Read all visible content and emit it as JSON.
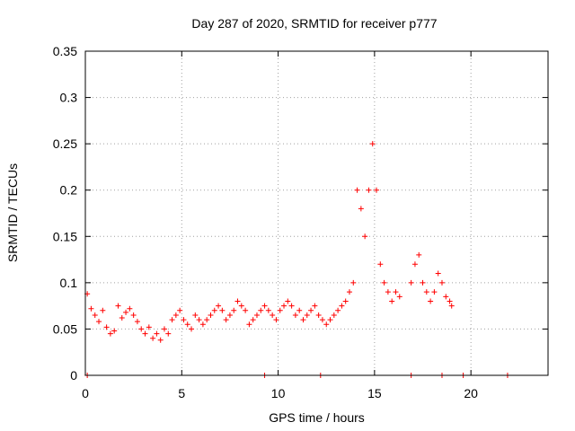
{
  "chart_data": {
    "type": "scatter",
    "title": "Day 287 of 2020, SRMTID for receiver p777",
    "xlabel": "GPS time / hours",
    "ylabel": "SRMTID / TECUs",
    "xlim": [
      0,
      24
    ],
    "ylim": [
      0,
      0.35
    ],
    "xticks": [
      0,
      5,
      10,
      15,
      20
    ],
    "xtick_labels": [
      "0",
      "5",
      "10",
      "15",
      "20"
    ],
    "yticks": [
      0,
      0.05,
      0.1,
      0.15,
      0.2,
      0.25,
      0.3,
      0.35
    ],
    "ytick_labels": [
      "0",
      "0.05",
      "0.1",
      "0.15",
      "0.2",
      "0.25",
      "0.3",
      "0.35"
    ],
    "grid": true,
    "marker": "+",
    "series": [
      {
        "name": "SRMTID",
        "color": "#ff0000",
        "x": [
          0.1,
          0.3,
          0.5,
          0.7,
          0.9,
          1.1,
          1.3,
          1.5,
          1.7,
          1.9,
          2.1,
          2.3,
          2.5,
          2.7,
          2.9,
          3.1,
          3.3,
          3.5,
          3.7,
          3.9,
          4.1,
          4.3,
          4.5,
          4.7,
          4.9,
          5.1,
          5.3,
          5.5,
          5.7,
          5.9,
          6.1,
          6.3,
          6.5,
          6.7,
          6.9,
          7.1,
          7.3,
          7.5,
          7.7,
          7.9,
          8.1,
          8.3,
          8.5,
          8.7,
          8.9,
          9.1,
          9.3,
          9.5,
          9.7,
          9.9,
          10.1,
          10.3,
          10.5,
          10.7,
          10.9,
          11.1,
          11.3,
          11.5,
          11.7,
          11.9,
          12.1,
          12.3,
          12.5,
          12.7,
          12.9,
          13.1,
          13.3,
          13.5,
          13.7,
          13.9,
          14.1,
          14.3,
          14.5,
          14.7,
          14.9,
          15.1,
          15.3,
          15.5,
          15.7,
          15.9,
          16.1,
          16.3,
          16.9,
          17.1,
          17.3,
          17.5,
          17.7,
          17.9,
          18.1,
          18.3,
          18.5,
          18.7,
          18.9,
          19.0,
          0.1,
          9.3,
          12.2,
          16.9,
          18.5,
          19.6,
          21.9
        ],
        "y": [
          0.088,
          0.072,
          0.065,
          0.058,
          0.07,
          0.052,
          0.045,
          0.048,
          0.075,
          0.062,
          0.068,
          0.072,
          0.065,
          0.058,
          0.05,
          0.045,
          0.052,
          0.04,
          0.045,
          0.038,
          0.05,
          0.045,
          0.06,
          0.065,
          0.07,
          0.06,
          0.055,
          0.05,
          0.065,
          0.06,
          0.055,
          0.06,
          0.065,
          0.07,
          0.075,
          0.07,
          0.06,
          0.065,
          0.07,
          0.08,
          0.075,
          0.07,
          0.055,
          0.06,
          0.065,
          0.07,
          0.075,
          0.07,
          0.065,
          0.06,
          0.07,
          0.075,
          0.08,
          0.075,
          0.065,
          0.07,
          0.06,
          0.065,
          0.07,
          0.075,
          0.065,
          0.06,
          0.055,
          0.06,
          0.065,
          0.07,
          0.075,
          0.08,
          0.09,
          0.1,
          0.2,
          0.18,
          0.15,
          0.2,
          0.25,
          0.2,
          0.12,
          0.1,
          0.09,
          0.08,
          0.09,
          0.085,
          0.1,
          0.12,
          0.13,
          0.1,
          0.09,
          0.08,
          0.09,
          0.11,
          0.1,
          0.085,
          0.08,
          0.075,
          0,
          0,
          0,
          0,
          0,
          0,
          0
        ]
      }
    ]
  }
}
